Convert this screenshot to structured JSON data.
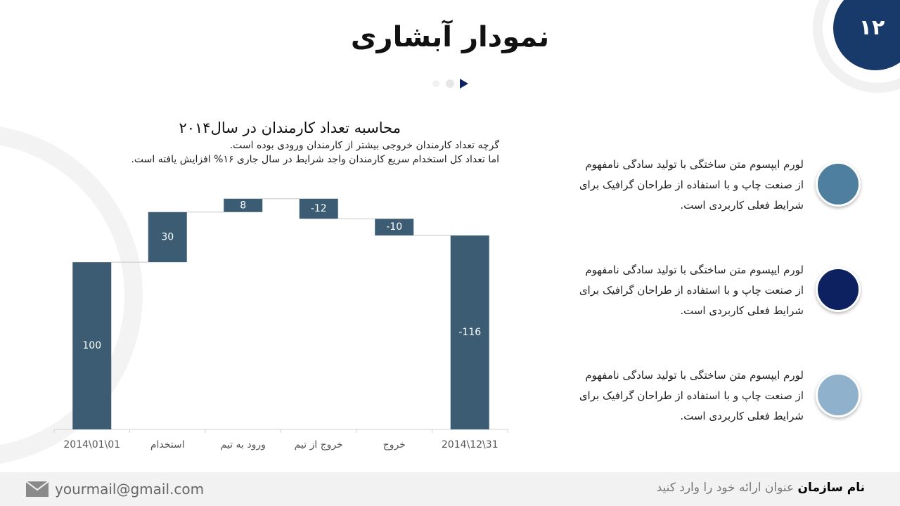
{
  "header": {
    "title": "نمودار آبشاری",
    "page_number": "۱۲"
  },
  "chart_data": {
    "type": "waterfall",
    "title": "محاسبه تعداد کارمندان در سال۲۰۱۴",
    "subtitle": [
      "گرچه تعداد کارمندان خروجی بیشتر از کارمندان ورودی بوده است.",
      "اما تعداد کل استخدام سریع کارمندان واجد شرایط در سال جاری ۱۶% افزایش یافته است."
    ],
    "categories": [
      "2014\\01\\01",
      "استخدام",
      "ورود به تیم",
      "خروج از تیم",
      "خروج",
      "2014\\12\\31"
    ],
    "values": [
      100,
      30,
      8,
      -12,
      -10,
      -116
    ],
    "color": "#3b5c73",
    "ylim": [
      0,
      140
    ]
  },
  "items": [
    {
      "lines": [
        "لورم ایپسوم متن ساختگی با تولید سادگی نامفهوم",
        "از صنعت چاپ و با استفاده از طراحان گرافیک برای",
        "شرایط فعلی کاربردی است."
      ],
      "color": "#4f7f9e"
    },
    {
      "lines": [
        "لورم ایپسوم متن ساختگی با تولید سادگی نامفهوم",
        "از صنعت چاپ و با استفاده از طراحان گرافیک برای",
        "شرایط فعلی کاربردی است."
      ],
      "color": "#0d2160"
    },
    {
      "lines": [
        "لورم ایپسوم متن ساختگی با تولید سادگی نامفهوم",
        "از صنعت چاپ و با استفاده از طراحان گرافیک برای",
        "شرایط فعلی کاربردی است."
      ],
      "color": "#8fb1cb"
    }
  ],
  "footer": {
    "email": "yourmail@gmail.com",
    "organization": "نام سازمان",
    "presentation_title": "عنوان ارائه خود را وارد کنید"
  }
}
